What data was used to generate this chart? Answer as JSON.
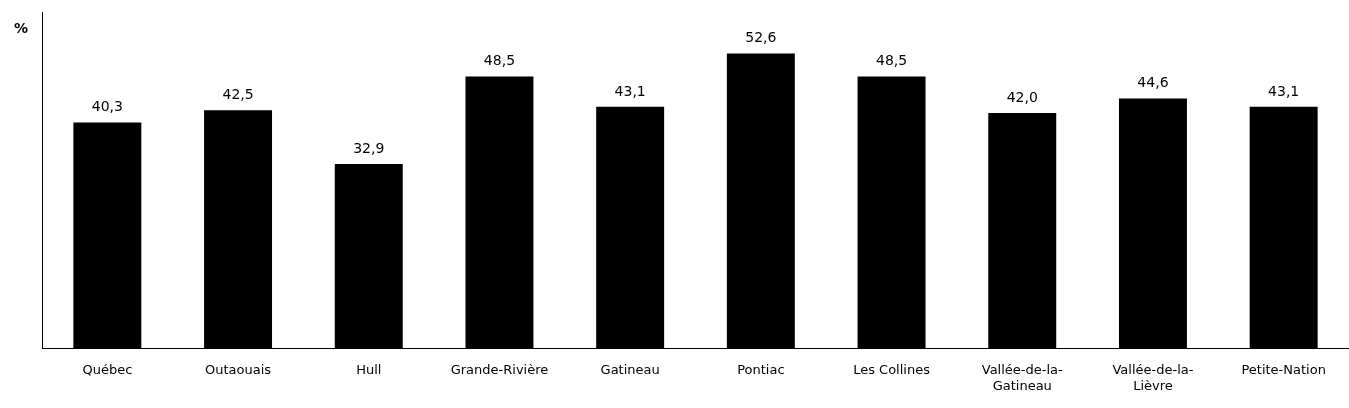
{
  "chart_data": {
    "type": "bar",
    "ylabel": "%",
    "categories": [
      "Québec",
      "Outaouais",
      "Hull",
      "Grande-Rivière",
      "Gatineau",
      "Pontiac",
      "Les Collines",
      "Vallée-de-la-Gatineau",
      "Vallée-de-la-Lièvre",
      "Petite-Nation"
    ],
    "values": [
      40.3,
      42.5,
      32.9,
      48.5,
      43.1,
      52.6,
      48.5,
      42.0,
      44.6,
      43.1
    ],
    "value_labels": [
      "40,3",
      "42,5",
      "32,9",
      "48,5",
      "43,1",
      "52,6",
      "48,5",
      "42,0",
      "44,6",
      "43,1"
    ],
    "color": "#000000",
    "grid": false,
    "legend": false
  }
}
